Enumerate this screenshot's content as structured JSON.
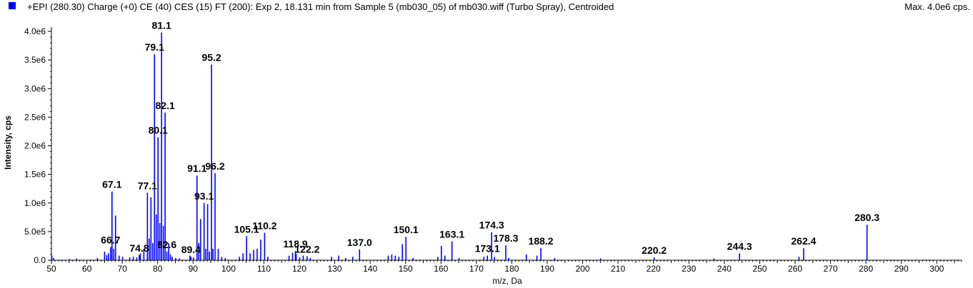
{
  "header": {
    "title": "+EPI (280.30) Charge (+0) CE (40) CES (15) FT (200): Exp 2, 18.131 min from Sample 5 (mb030_05) of mb030.wiff (Turbo Spray), Centroided",
    "max_label": "Max. 4.0e6 cps."
  },
  "colors": {
    "series": "#0000ff",
    "axis": "#000000",
    "background": "#ffffff"
  },
  "chart_data": {
    "type": "bar",
    "xlabel": "m/z, Da",
    "ylabel": "Intensity, cps",
    "xlim": [
      50,
      307
    ],
    "ylim": [
      0,
      4000000.0
    ],
    "x_ticks": [
      50,
      60,
      70,
      80,
      90,
      100,
      110,
      120,
      130,
      140,
      150,
      160,
      170,
      180,
      190,
      200,
      210,
      220,
      230,
      240,
      250,
      260,
      270,
      280,
      290,
      300
    ],
    "x_tick_labels": [
      "50",
      "60",
      "70",
      "80",
      "90",
      "100",
      "110",
      "120",
      "130",
      "140",
      "150",
      "160",
      "170",
      "180",
      "190",
      "200",
      "210",
      "220",
      "230",
      "240",
      "250",
      "260",
      "270",
      "280",
      "290",
      "300"
    ],
    "y_ticks": [
      0,
      500000,
      1000000,
      1500000,
      2000000,
      2500000,
      3000000,
      3500000,
      4000000
    ],
    "y_tick_labels": [
      "0.0",
      "5.0e5",
      "1.0e6",
      "1.5e6",
      "2.0e6",
      "2.5e6",
      "3.0e6",
      "3.5e6",
      "4.0e6"
    ],
    "peaks": [
      {
        "x": 50.1,
        "y": 80000
      },
      {
        "x": 50.6,
        "y": 40000
      },
      {
        "x": 55.1,
        "y": 20000
      },
      {
        "x": 57.1,
        "y": 30000
      },
      {
        "x": 63.0,
        "y": 40000
      },
      {
        "x": 65.0,
        "y": 150000
      },
      {
        "x": 65.6,
        "y": 90000
      },
      {
        "x": 66.1,
        "y": 120000
      },
      {
        "x": 66.7,
        "y": 230000
      },
      {
        "x": 67.1,
        "y": 1200000
      },
      {
        "x": 67.6,
        "y": 200000
      },
      {
        "x": 68.1,
        "y": 780000
      },
      {
        "x": 69.1,
        "y": 80000
      },
      {
        "x": 70.1,
        "y": 60000
      },
      {
        "x": 72.1,
        "y": 50000
      },
      {
        "x": 73.1,
        "y": 60000
      },
      {
        "x": 74.1,
        "y": 50000
      },
      {
        "x": 74.8,
        "y": 90000
      },
      {
        "x": 75.1,
        "y": 120000
      },
      {
        "x": 76.1,
        "y": 200000
      },
      {
        "x": 77.1,
        "y": 1180000
      },
      {
        "x": 77.6,
        "y": 380000
      },
      {
        "x": 78.1,
        "y": 1100000
      },
      {
        "x": 78.6,
        "y": 300000
      },
      {
        "x": 79.1,
        "y": 3600000
      },
      {
        "x": 79.6,
        "y": 800000
      },
      {
        "x": 80.1,
        "y": 2150000
      },
      {
        "x": 80.6,
        "y": 650000
      },
      {
        "x": 81.1,
        "y": 3980000
      },
      {
        "x": 81.6,
        "y": 600000
      },
      {
        "x": 82.1,
        "y": 2580000
      },
      {
        "x": 82.6,
        "y": 150000
      },
      {
        "x": 83.1,
        "y": 300000
      },
      {
        "x": 83.6,
        "y": 100000
      },
      {
        "x": 84.1,
        "y": 60000
      },
      {
        "x": 85.1,
        "y": 40000
      },
      {
        "x": 86.1,
        "y": 30000
      },
      {
        "x": 89.1,
        "y": 80000
      },
      {
        "x": 89.4,
        "y": 60000
      },
      {
        "x": 90.1,
        "y": 50000
      },
      {
        "x": 91.1,
        "y": 1480000
      },
      {
        "x": 91.6,
        "y": 300000
      },
      {
        "x": 92.1,
        "y": 720000
      },
      {
        "x": 93.1,
        "y": 1000000
      },
      {
        "x": 93.6,
        "y": 200000
      },
      {
        "x": 94.1,
        "y": 980000
      },
      {
        "x": 94.6,
        "y": 150000
      },
      {
        "x": 95.2,
        "y": 3420000
      },
      {
        "x": 95.6,
        "y": 200000
      },
      {
        "x": 96.2,
        "y": 1520000
      },
      {
        "x": 97.1,
        "y": 200000
      },
      {
        "x": 98.1,
        "y": 60000
      },
      {
        "x": 99.1,
        "y": 40000
      },
      {
        "x": 103.1,
        "y": 60000
      },
      {
        "x": 104.1,
        "y": 120000
      },
      {
        "x": 105.1,
        "y": 420000
      },
      {
        "x": 106.1,
        "y": 120000
      },
      {
        "x": 107.1,
        "y": 180000
      },
      {
        "x": 108.1,
        "y": 200000
      },
      {
        "x": 109.1,
        "y": 360000
      },
      {
        "x": 110.2,
        "y": 480000
      },
      {
        "x": 111.1,
        "y": 60000
      },
      {
        "x": 117.1,
        "y": 80000
      },
      {
        "x": 118.1,
        "y": 130000
      },
      {
        "x": 118.9,
        "y": 160000
      },
      {
        "x": 119.1,
        "y": 110000
      },
      {
        "x": 120.1,
        "y": 50000
      },
      {
        "x": 121.1,
        "y": 80000
      },
      {
        "x": 122.2,
        "y": 70000
      },
      {
        "x": 123.1,
        "y": 40000
      },
      {
        "x": 129.1,
        "y": 60000
      },
      {
        "x": 131.1,
        "y": 80000
      },
      {
        "x": 133.1,
        "y": 40000
      },
      {
        "x": 135.1,
        "y": 60000
      },
      {
        "x": 137.0,
        "y": 190000
      },
      {
        "x": 145.1,
        "y": 80000
      },
      {
        "x": 146.1,
        "y": 100000
      },
      {
        "x": 147.1,
        "y": 80000
      },
      {
        "x": 148.1,
        "y": 60000
      },
      {
        "x": 149.1,
        "y": 280000
      },
      {
        "x": 150.1,
        "y": 410000
      },
      {
        "x": 152.1,
        "y": 40000
      },
      {
        "x": 159.1,
        "y": 60000
      },
      {
        "x": 160.1,
        "y": 250000
      },
      {
        "x": 161.1,
        "y": 80000
      },
      {
        "x": 163.1,
        "y": 330000
      },
      {
        "x": 165.1,
        "y": 40000
      },
      {
        "x": 172.1,
        "y": 60000
      },
      {
        "x": 173.1,
        "y": 80000
      },
      {
        "x": 174.3,
        "y": 490000
      },
      {
        "x": 175.1,
        "y": 60000
      },
      {
        "x": 178.3,
        "y": 260000
      },
      {
        "x": 179.1,
        "y": 40000
      },
      {
        "x": 184.1,
        "y": 100000
      },
      {
        "x": 187.1,
        "y": 80000
      },
      {
        "x": 188.2,
        "y": 210000
      },
      {
        "x": 192.1,
        "y": 40000
      },
      {
        "x": 205.1,
        "y": 30000
      },
      {
        "x": 220.2,
        "y": 50000
      },
      {
        "x": 237.1,
        "y": 30000
      },
      {
        "x": 244.3,
        "y": 120000
      },
      {
        "x": 261.1,
        "y": 60000
      },
      {
        "x": 262.4,
        "y": 210000
      },
      {
        "x": 280.3,
        "y": 620000
      }
    ],
    "annotations": [
      {
        "text": "81.1",
        "x": 81.1,
        "y": 3980000
      },
      {
        "text": "79.1",
        "x": 79.1,
        "y": 3600000
      },
      {
        "text": "95.2",
        "x": 95.2,
        "y": 3420000
      },
      {
        "text": "82.1",
        "x": 82.1,
        "y": 2580000
      },
      {
        "text": "80.1",
        "x": 80.1,
        "y": 2150000
      },
      {
        "text": "91.1",
        "x": 91.1,
        "y": 1480000
      },
      {
        "text": "96.2",
        "x": 96.2,
        "y": 1520000
      },
      {
        "text": "67.1",
        "x": 67.1,
        "y": 1200000
      },
      {
        "text": "77.1",
        "x": 77.1,
        "y": 1180000
      },
      {
        "text": "93.1",
        "x": 93.1,
        "y": 1000000
      },
      {
        "text": "105.1",
        "x": 105.1,
        "y": 420000
      },
      {
        "text": "110.2",
        "x": 110.2,
        "y": 480000
      },
      {
        "text": "66.7",
        "x": 66.7,
        "y": 230000
      },
      {
        "text": "74.8",
        "x": 74.8,
        "y": 90000
      },
      {
        "text": "82.6",
        "x": 82.6,
        "y": 150000
      },
      {
        "text": "89.4",
        "x": 89.4,
        "y": 60000
      },
      {
        "text": "118.9",
        "x": 118.9,
        "y": 160000
      },
      {
        "text": "122.2",
        "x": 122.2,
        "y": 70000
      },
      {
        "text": "137.0",
        "x": 137.0,
        "y": 190000
      },
      {
        "text": "150.1",
        "x": 150.1,
        "y": 410000
      },
      {
        "text": "163.1",
        "x": 163.1,
        "y": 330000
      },
      {
        "text": "173.1",
        "x": 173.1,
        "y": 80000
      },
      {
        "text": "174.3",
        "x": 174.3,
        "y": 490000
      },
      {
        "text": "178.3",
        "x": 178.3,
        "y": 260000
      },
      {
        "text": "188.2",
        "x": 188.2,
        "y": 210000
      },
      {
        "text": "220.2",
        "x": 220.2,
        "y": 50000
      },
      {
        "text": "244.3",
        "x": 244.3,
        "y": 120000
      },
      {
        "text": "262.4",
        "x": 262.4,
        "y": 210000
      },
      {
        "text": "280.3",
        "x": 280.3,
        "y": 620000
      }
    ]
  }
}
